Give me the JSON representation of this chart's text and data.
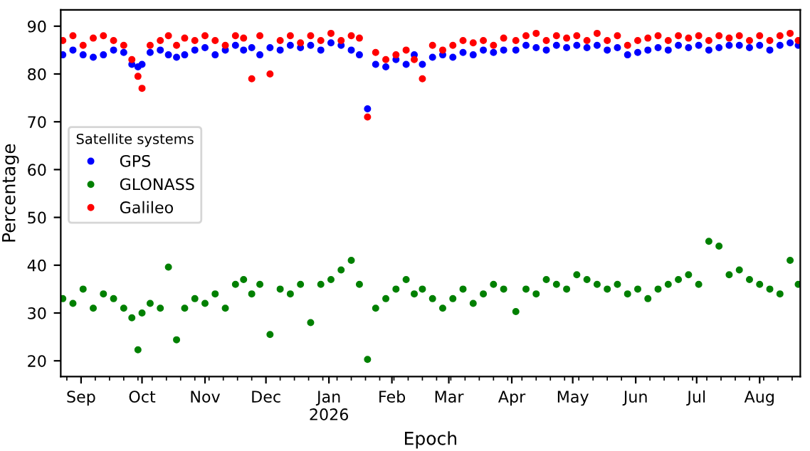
{
  "chart_data": {
    "type": "scatter",
    "xlabel": "Epoch",
    "ylabel": "Percentage",
    "legend_title": "Satellite systems",
    "legend": "center left",
    "marker": "circle",
    "grid": false,
    "x": [
      "2025-08-23",
      "2025-08-28",
      "2025-09-02",
      "2025-09-07",
      "2025-09-12",
      "2025-09-17",
      "2025-09-22",
      "2025-09-26",
      "2025-09-29",
      "2025-10-01",
      "2025-10-05",
      "2025-10-10",
      "2025-10-14",
      "2025-10-18",
      "2025-10-22",
      "2025-10-27",
      "2025-11-01",
      "2025-11-06",
      "2025-11-11",
      "2025-11-16",
      "2025-11-20",
      "2025-11-24",
      "2025-11-28",
      "2025-12-03",
      "2025-12-08",
      "2025-12-13",
      "2025-12-18",
      "2025-12-23",
      "2025-12-28",
      "2026-01-02",
      "2026-01-07",
      "2026-01-12",
      "2026-01-16",
      "2026-01-20",
      "2026-01-24",
      "2026-01-29",
      "2026-02-03",
      "2026-02-08",
      "2026-02-12",
      "2026-02-16",
      "2026-02-21",
      "2026-02-26",
      "2026-03-03",
      "2026-03-08",
      "2026-03-13",
      "2026-03-18",
      "2026-03-23",
      "2026-03-28",
      "2026-04-03",
      "2026-04-08",
      "2026-04-13",
      "2026-04-18",
      "2026-04-23",
      "2026-04-28",
      "2026-05-03",
      "2026-05-08",
      "2026-05-13",
      "2026-05-18",
      "2026-05-23",
      "2026-05-28",
      "2026-06-02",
      "2026-06-07",
      "2026-06-12",
      "2026-06-17",
      "2026-06-22",
      "2026-06-27",
      "2026-07-02",
      "2026-07-07",
      "2026-07-12",
      "2026-07-17",
      "2026-07-22",
      "2026-07-27",
      "2026-08-01",
      "2026-08-06",
      "2026-08-11",
      "2026-08-16",
      "2026-08-20"
    ],
    "xlim": [
      "2025-08-22",
      "2026-08-21"
    ],
    "xticks": [
      {
        "value": "2025-09-01",
        "label": "Sep"
      },
      {
        "value": "2025-10-01",
        "label": "Oct"
      },
      {
        "value": "2025-11-01",
        "label": "Nov"
      },
      {
        "value": "2025-12-01",
        "label": "Dec"
      },
      {
        "value": "2026-01-01",
        "label": "Jan\n2026"
      },
      {
        "value": "2026-02-01",
        "label": "Feb"
      },
      {
        "value": "2026-03-01",
        "label": "Mar"
      },
      {
        "value": "2026-04-01",
        "label": "Apr"
      },
      {
        "value": "2026-05-01",
        "label": "May"
      },
      {
        "value": "2026-06-01",
        "label": "Jun"
      },
      {
        "value": "2026-07-01",
        "label": "Jul"
      },
      {
        "value": "2026-08-01",
        "label": "Aug"
      }
    ],
    "ylim": [
      16.7,
      93.4
    ],
    "yticks": [
      20,
      30,
      40,
      50,
      60,
      70,
      80,
      90
    ],
    "series": [
      {
        "name": "GPS",
        "color": "#0000ff",
        "values": [
          84,
          85,
          84,
          83.5,
          84,
          85,
          84.5,
          82,
          81.5,
          82,
          84.5,
          85,
          84,
          83.5,
          84,
          85,
          85.5,
          84,
          85,
          86,
          85,
          85.5,
          84,
          85.5,
          85,
          86,
          85.5,
          86,
          85,
          86.5,
          86,
          85,
          84,
          72.7,
          82,
          81.5,
          83,
          82,
          84,
          82,
          83.5,
          84,
          83.5,
          84.5,
          84,
          85,
          84.5,
          85,
          85,
          86,
          85.5,
          85,
          86,
          85.5,
          86,
          85.5,
          86,
          85,
          85.5,
          84,
          84.5,
          85,
          85.5,
          85,
          86,
          85.5,
          86,
          85,
          85.5,
          86,
          86,
          85.5,
          86,
          85,
          86,
          86.5,
          86
        ]
      },
      {
        "name": "GLONASS",
        "color": "#008000",
        "values": [
          33,
          32,
          35,
          31,
          34,
          33,
          31,
          29,
          22.3,
          30,
          32,
          31,
          39.6,
          24.4,
          31,
          33,
          32,
          34,
          31,
          36,
          37,
          34,
          36,
          25.5,
          35,
          34,
          36,
          28,
          36,
          37,
          39,
          41,
          36,
          20.3,
          31,
          33,
          35,
          37,
          34,
          35,
          33,
          31,
          33,
          35,
          32,
          34,
          36,
          35,
          30.3,
          35,
          34,
          37,
          36,
          35,
          38,
          37,
          36,
          35,
          36,
          34,
          35,
          33,
          35,
          36,
          37,
          38,
          36,
          45,
          44,
          38,
          39,
          37,
          36,
          35,
          34,
          41,
          36
        ]
      },
      {
        "name": "Galileo",
        "color": "#ff0000",
        "values": [
          87,
          88,
          86,
          87.5,
          88,
          87,
          86,
          83,
          79.5,
          77,
          86,
          87,
          88,
          86,
          87.5,
          87,
          88,
          87,
          86,
          88,
          87.5,
          79,
          88,
          80,
          87,
          88,
          86.5,
          88,
          87,
          88.5,
          87,
          88,
          87.5,
          71,
          84.5,
          83,
          84,
          85,
          83,
          79,
          86,
          85,
          86,
          87,
          86.5,
          87,
          86,
          87.5,
          87,
          88,
          88.5,
          87,
          88,
          87.5,
          88,
          87,
          88.5,
          87,
          88,
          86,
          87,
          87.5,
          88,
          87,
          88,
          87.5,
          88,
          87,
          88,
          87.5,
          88,
          87,
          88,
          87,
          88,
          88.5,
          87
        ]
      }
    ]
  }
}
